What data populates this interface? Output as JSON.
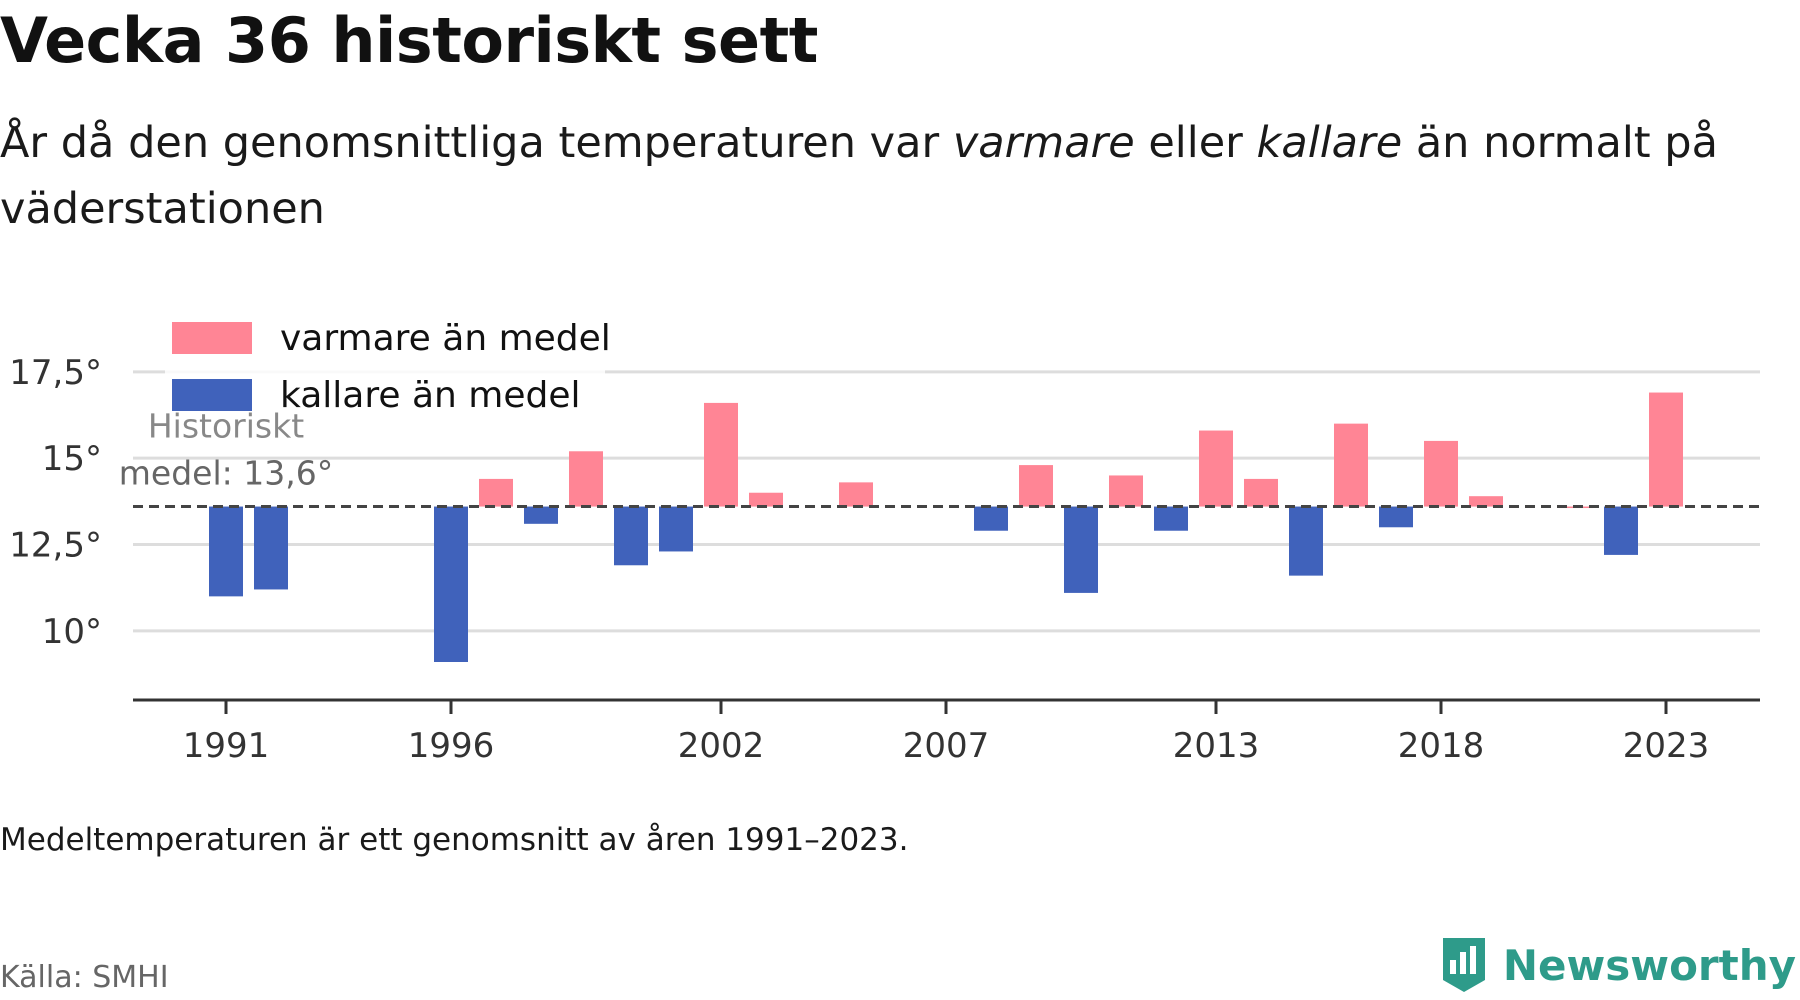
{
  "title": "Vecka 36 historiskt sett",
  "subtitle": {
    "part1": "År då den genomsnittliga temperaturen var ",
    "warm": "varmare",
    "part2": " eller ",
    "cold": "kallare",
    "part3": " än normalt på väderstationen"
  },
  "note": "Medeltemperaturen är ett genomsnitt av åren 1991–2023.",
  "source": "Källa: SMHI",
  "brand": {
    "name": "Newsworthy",
    "icon": "newsworthy-logo-icon",
    "color": "#2e9b8a"
  },
  "chart_data": {
    "type": "bar",
    "baseline": 13.6,
    "baseline_label": [
      "Historiskt",
      "medel: 13,6°"
    ],
    "ylim": [
      8,
      19
    ],
    "yticks": [
      10,
      12.5,
      15,
      17.5
    ],
    "ytick_labels": [
      "10°",
      "12,5°",
      "15°",
      "17,5°"
    ],
    "xticks": [
      1991,
      1996,
      2002,
      2007,
      2013,
      2018,
      2023
    ],
    "grid": true,
    "legend": {
      "placement": "top-left",
      "items": [
        {
          "label": "varmare än medel",
          "color": "#ff8595"
        },
        {
          "label": "kallare än medel",
          "color": "#4062bb"
        }
      ]
    },
    "years": [
      1991,
      1992,
      1993,
      1994,
      1995,
      1996,
      1997,
      1998,
      1999,
      2000,
      2001,
      2002,
      2003,
      2004,
      2005,
      2006,
      2007,
      2008,
      2009,
      2010,
      2011,
      2012,
      2013,
      2014,
      2015,
      2016,
      2017,
      2018,
      2019,
      2020,
      2021,
      2022,
      2023
    ],
    "values": [
      11.0,
      11.2,
      null,
      null,
      null,
      9.1,
      14.4,
      13.1,
      15.2,
      11.9,
      12.3,
      16.6,
      14.0,
      null,
      14.3,
      null,
      null,
      12.9,
      14.8,
      11.1,
      14.5,
      12.9,
      15.8,
      14.4,
      11.6,
      16.0,
      13.0,
      15.5,
      13.9,
      null,
      13.6,
      12.2,
      16.9
    ],
    "colors": {
      "warm": "#ff8595",
      "cold": "#4062bb"
    }
  }
}
